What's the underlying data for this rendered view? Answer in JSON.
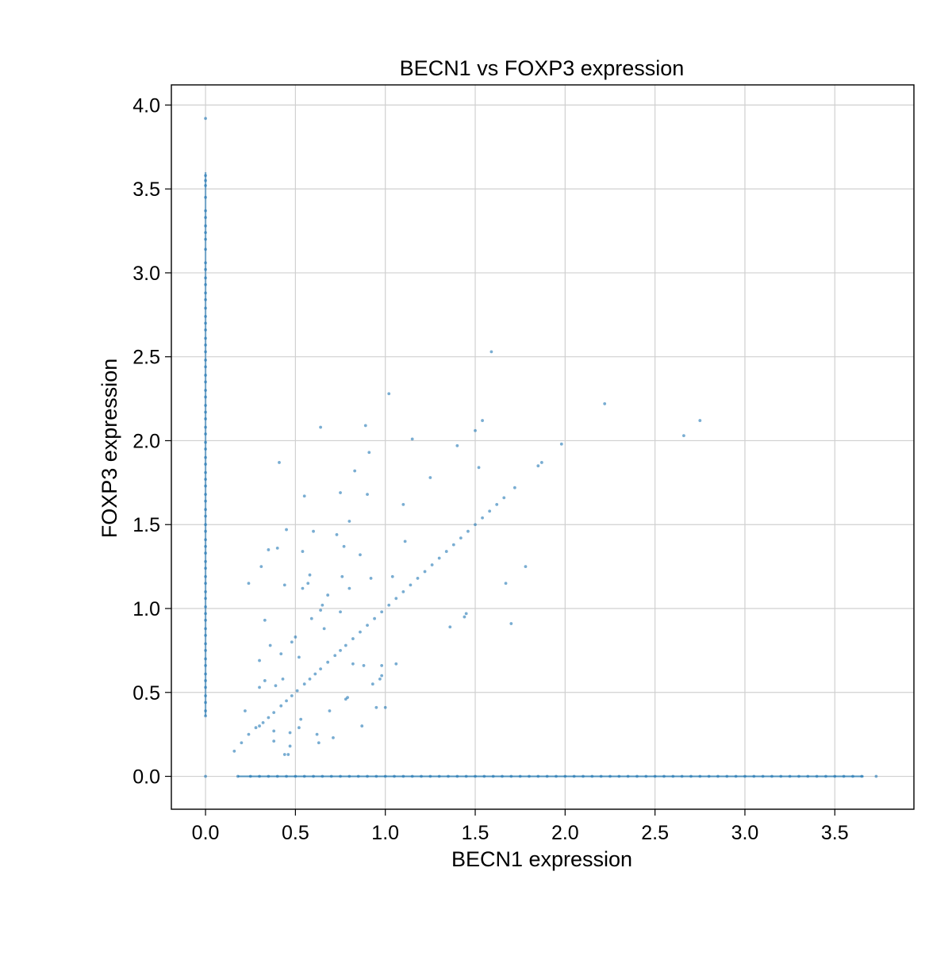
{
  "chart_data": {
    "type": "scatter",
    "title": "BECN1 vs FOXP3 expression",
    "xlabel": "BECN1 expression",
    "ylabel": "FOXP3 expression",
    "xlim": [
      -0.19,
      3.94
    ],
    "ylim": [
      -0.196,
      4.12
    ],
    "xticks": [
      0.0,
      0.5,
      1.0,
      1.5,
      2.0,
      2.5,
      3.0,
      3.5
    ],
    "yticks": [
      0.0,
      0.5,
      1.0,
      1.5,
      2.0,
      2.5,
      3.0,
      3.5,
      4.0
    ],
    "grid": true,
    "legend": "none",
    "colors": {
      "point": "#1f77b4",
      "grid": "#d0d0d0"
    },
    "series": [
      {
        "points": [
          [
            0,
            3.92
          ],
          [
            0,
            3.58
          ],
          [
            0,
            3.55
          ],
          [
            0,
            3.52
          ],
          [
            0,
            3.45
          ],
          [
            0,
            3.37
          ],
          [
            0,
            3.33
          ],
          [
            0,
            3.28
          ],
          [
            0,
            3.24
          ],
          [
            0,
            3.2
          ],
          [
            0,
            3.14
          ],
          [
            0,
            3.06
          ],
          [
            0,
            3.02
          ],
          [
            0,
            2.97
          ],
          [
            0,
            2.93
          ],
          [
            0,
            2.88
          ],
          [
            0,
            2.84
          ],
          [
            0,
            2.79
          ],
          [
            0,
            2.74
          ],
          [
            0,
            2.7
          ],
          [
            0,
            2.66
          ],
          [
            0,
            2.61
          ],
          [
            0,
            2.57
          ],
          [
            0,
            2.53
          ],
          [
            0,
            2.48
          ],
          [
            0,
            2.44
          ],
          [
            0,
            2.39
          ],
          [
            0,
            2.35
          ],
          [
            0,
            2.3
          ],
          [
            0,
            2.26
          ],
          [
            0,
            2.21
          ],
          [
            0,
            2.17
          ],
          [
            0,
            2.13
          ],
          [
            0,
            2.08
          ],
          [
            0,
            2.04
          ],
          [
            0,
            1.99
          ],
          [
            0,
            1.95
          ],
          [
            0,
            1.9
          ],
          [
            0,
            1.86
          ],
          [
            0,
            1.81
          ],
          [
            0,
            1.77
          ],
          [
            0,
            1.73
          ],
          [
            0,
            1.68
          ],
          [
            0,
            1.64
          ],
          [
            0,
            1.59
          ],
          [
            0,
            1.55
          ],
          [
            0,
            1.5
          ],
          [
            0,
            1.46
          ],
          [
            0,
            1.41
          ],
          [
            0,
            1.37
          ],
          [
            0,
            1.33
          ],
          [
            0,
            1.28
          ],
          [
            0,
            1.24
          ],
          [
            0,
            1.19
          ],
          [
            0,
            1.15
          ],
          [
            0,
            1.1
          ],
          [
            0,
            1.06
          ],
          [
            0,
            1.01
          ],
          [
            0,
            0.97
          ],
          [
            0,
            0.93
          ],
          [
            0,
            0.88
          ],
          [
            0,
            0.84
          ],
          [
            0,
            0.79
          ],
          [
            0,
            0.75
          ],
          [
            0,
            0.7
          ],
          [
            0,
            0.66
          ],
          [
            0,
            0.61
          ],
          [
            0,
            0.57
          ],
          [
            0,
            0.53
          ],
          [
            0,
            0.48
          ],
          [
            0,
            0.44
          ],
          [
            0,
            0.39
          ],
          [
            0,
            0.36
          ],
          [
            0,
            0.0
          ],
          [
            0.16,
            0.15
          ],
          [
            0.2,
            0.2
          ],
          [
            0.24,
            0.25
          ],
          [
            0.28,
            0.29
          ],
          [
            0.3,
            0.3
          ],
          [
            0.32,
            0.32
          ],
          [
            0.35,
            0.35
          ],
          [
            0.38,
            0.38
          ],
          [
            0.42,
            0.42
          ],
          [
            0.45,
            0.45
          ],
          [
            0.48,
            0.48
          ],
          [
            0.51,
            0.51
          ],
          [
            0.55,
            0.55
          ],
          [
            0.58,
            0.58
          ],
          [
            0.61,
            0.61
          ],
          [
            0.64,
            0.64
          ],
          [
            0.68,
            0.68
          ],
          [
            0.72,
            0.72
          ],
          [
            0.75,
            0.75
          ],
          [
            0.78,
            0.78
          ],
          [
            0.82,
            0.82
          ],
          [
            0.86,
            0.86
          ],
          [
            0.9,
            0.9
          ],
          [
            0.94,
            0.94
          ],
          [
            0.98,
            0.98
          ],
          [
            1.02,
            1.02
          ],
          [
            1.06,
            1.06
          ],
          [
            1.1,
            1.1
          ],
          [
            1.14,
            1.14
          ],
          [
            1.18,
            1.18
          ],
          [
            1.22,
            1.22
          ],
          [
            1.26,
            1.26
          ],
          [
            1.3,
            1.3
          ],
          [
            1.34,
            1.34
          ],
          [
            1.38,
            1.38
          ],
          [
            1.42,
            1.42
          ],
          [
            1.46,
            1.46
          ],
          [
            1.5,
            1.5
          ],
          [
            1.54,
            1.54
          ],
          [
            1.58,
            1.58
          ],
          [
            1.62,
            1.62
          ],
          [
            1.66,
            1.66
          ],
          [
            1.72,
            1.72
          ],
          [
            1.85,
            1.85
          ],
          [
            1.87,
            1.87
          ],
          [
            0.22,
            0.39
          ],
          [
            0.24,
            1.15
          ],
          [
            0.3,
            0.69
          ],
          [
            0.31,
            1.25
          ],
          [
            0.3,
            0.53
          ],
          [
            0.33,
            0.57
          ],
          [
            0.33,
            0.93
          ],
          [
            0.35,
            1.35
          ],
          [
            0.36,
            0.78
          ],
          [
            0.4,
            1.36
          ],
          [
            0.38,
            0.27
          ],
          [
            0.38,
            0.21
          ],
          [
            0.39,
            0.54
          ],
          [
            0.41,
            1.87
          ],
          [
            0.42,
            0.73
          ],
          [
            0.43,
            0.58
          ],
          [
            0.44,
            1.14
          ],
          [
            0.44,
            0.13
          ],
          [
            0.45,
            1.47
          ],
          [
            0.46,
            0.13
          ],
          [
            0.47,
            0.18
          ],
          [
            0.47,
            0.26
          ],
          [
            0.48,
            0.8
          ],
          [
            0.5,
            0.83
          ],
          [
            0.52,
            0.71
          ],
          [
            0.52,
            0.29
          ],
          [
            0.53,
            0.34
          ],
          [
            0.54,
            1.12
          ],
          [
            0.54,
            1.34
          ],
          [
            0.55,
            1.67
          ],
          [
            0.57,
            1.15
          ],
          [
            0.58,
            1.2
          ],
          [
            0.59,
            0.94
          ],
          [
            0.6,
            1.46
          ],
          [
            0.62,
            0.25
          ],
          [
            0.63,
            0.2
          ],
          [
            0.64,
            2.08
          ],
          [
            0.64,
            0.99
          ],
          [
            0.65,
            1.02
          ],
          [
            0.66,
            0.88
          ],
          [
            0.68,
            1.08
          ],
          [
            0.69,
            0.39
          ],
          [
            0.71,
            0.23
          ],
          [
            0.73,
            1.44
          ],
          [
            0.75,
            0.98
          ],
          [
            0.75,
            1.69
          ],
          [
            0.76,
            1.19
          ],
          [
            0.77,
            1.37
          ],
          [
            0.78,
            0.46
          ],
          [
            0.79,
            0.47
          ],
          [
            0.8,
            1.52
          ],
          [
            0.8,
            1.12
          ],
          [
            0.82,
            0.67
          ],
          [
            0.83,
            1.82
          ],
          [
            0.86,
            1.32
          ],
          [
            0.87,
            0.3
          ],
          [
            0.88,
            0.66
          ],
          [
            0.89,
            2.09
          ],
          [
            0.9,
            1.68
          ],
          [
            0.91,
            1.93
          ],
          [
            0.92,
            1.18
          ],
          [
            0.93,
            0.55
          ],
          [
            0.95,
            0.41
          ],
          [
            0.97,
            0.58
          ],
          [
            0.98,
            0.6
          ],
          [
            0.98,
            0.66
          ],
          [
            1.0,
            0.41
          ],
          [
            1.02,
            2.28
          ],
          [
            1.04,
            1.19
          ],
          [
            1.06,
            0.67
          ],
          [
            1.1,
            1.62
          ],
          [
            1.11,
            1.4
          ],
          [
            1.15,
            2.01
          ],
          [
            1.25,
            1.78
          ],
          [
            1.36,
            0.89
          ],
          [
            1.4,
            1.97
          ],
          [
            1.44,
            0.95
          ],
          [
            1.45,
            0.97
          ],
          [
            1.5,
            2.06
          ],
          [
            1.52,
            1.84
          ],
          [
            1.54,
            2.12
          ],
          [
            1.59,
            2.53
          ],
          [
            1.67,
            1.15
          ],
          [
            1.7,
            0.91
          ],
          [
            1.78,
            1.25
          ],
          [
            1.98,
            1.98
          ],
          [
            2.22,
            2.22
          ],
          [
            2.66,
            2.03
          ],
          [
            2.75,
            2.12
          ],
          [
            0.18,
            0.0
          ],
          [
            0.25,
            0.0
          ],
          [
            0.3,
            0.0
          ],
          [
            0.35,
            0.0
          ],
          [
            0.4,
            0.0
          ],
          [
            0.45,
            0.0
          ],
          [
            0.5,
            0.0
          ],
          [
            0.55,
            0.0
          ],
          [
            0.6,
            0.0
          ],
          [
            0.65,
            0.0
          ],
          [
            0.7,
            0.0
          ],
          [
            0.75,
            0.0
          ],
          [
            0.8,
            0.0
          ],
          [
            0.85,
            0.0
          ],
          [
            0.9,
            0.0
          ],
          [
            0.95,
            0.0
          ],
          [
            1.0,
            0.0
          ],
          [
            1.05,
            0.0
          ],
          [
            1.1,
            0.0
          ],
          [
            1.15,
            0.0
          ],
          [
            1.2,
            0.0
          ],
          [
            1.25,
            0.0
          ],
          [
            1.3,
            0.0
          ],
          [
            1.35,
            0.0
          ],
          [
            1.4,
            0.0
          ],
          [
            1.45,
            0.0
          ],
          [
            1.5,
            0.0
          ],
          [
            1.55,
            0.0
          ],
          [
            1.6,
            0.0
          ],
          [
            1.65,
            0.0
          ],
          [
            1.7,
            0.0
          ],
          [
            1.75,
            0.0
          ],
          [
            1.8,
            0.0
          ],
          [
            1.85,
            0.0
          ],
          [
            1.9,
            0.0
          ],
          [
            1.95,
            0.0
          ],
          [
            2.0,
            0.0
          ],
          [
            2.05,
            0.0
          ],
          [
            2.1,
            0.0
          ],
          [
            2.15,
            0.0
          ],
          [
            2.2,
            0.0
          ],
          [
            2.25,
            0.0
          ],
          [
            2.3,
            0.0
          ],
          [
            2.35,
            0.0
          ],
          [
            2.4,
            0.0
          ],
          [
            2.45,
            0.0
          ],
          [
            2.5,
            0.0
          ],
          [
            2.55,
            0.0
          ],
          [
            2.6,
            0.0
          ],
          [
            2.65,
            0.0
          ],
          [
            2.7,
            0.0
          ],
          [
            2.75,
            0.0
          ],
          [
            2.8,
            0.0
          ],
          [
            2.85,
            0.0
          ],
          [
            2.9,
            0.0
          ],
          [
            2.95,
            0.0
          ],
          [
            3.0,
            0.0
          ],
          [
            3.05,
            0.0
          ],
          [
            3.1,
            0.0
          ],
          [
            3.15,
            0.0
          ],
          [
            3.2,
            0.0
          ],
          [
            3.25,
            0.0
          ],
          [
            3.3,
            0.0
          ],
          [
            3.35,
            0.0
          ],
          [
            3.4,
            0.0
          ],
          [
            3.45,
            0.0
          ],
          [
            3.5,
            0.0
          ],
          [
            3.55,
            0.0
          ],
          [
            3.6,
            0.0
          ],
          [
            3.65,
            0.0
          ],
          [
            3.73,
            0.0
          ]
        ]
      }
    ]
  }
}
